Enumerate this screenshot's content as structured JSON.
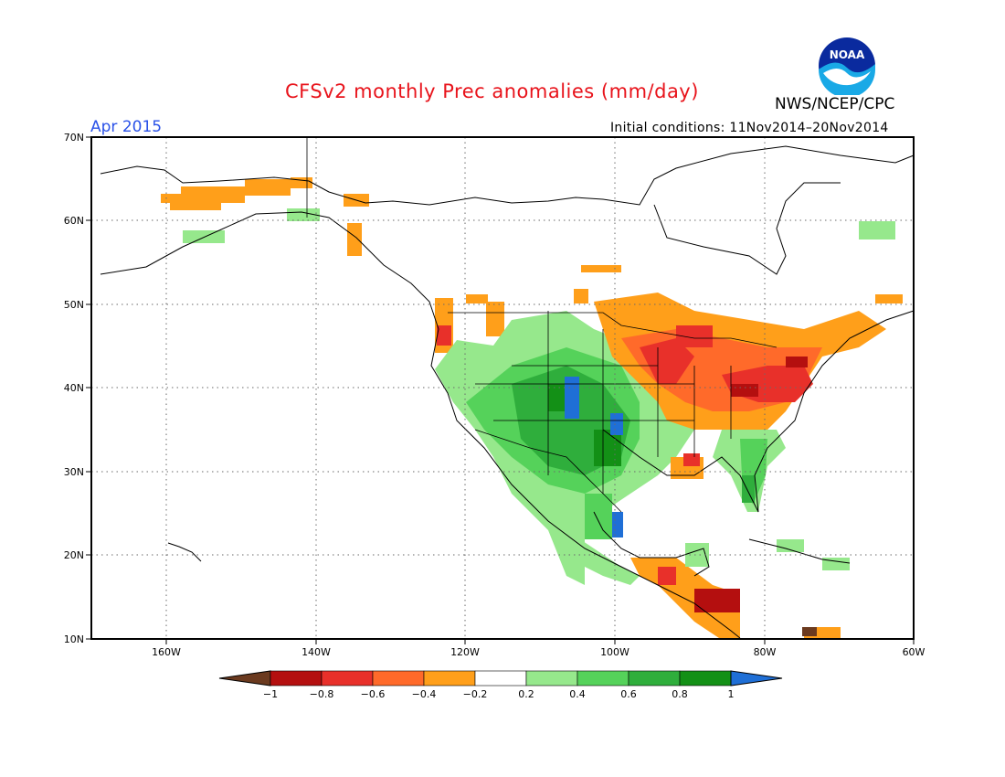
{
  "title": "CFSv2 monthly Prec anomalies (mm/day)",
  "agency": "NWS/NCEP/CPC",
  "logo_text": "NOAA",
  "month": "Apr 2015",
  "initial_conditions": "Initial conditions: 11Nov2014–20Nov2014",
  "lat_labels": [
    "70N",
    "60N",
    "50N",
    "40N",
    "30N",
    "20N",
    "10N"
  ],
  "lon_labels": [
    "160W",
    "140W",
    "120W",
    "100W",
    "80W",
    "60W"
  ],
  "colorbar": {
    "labels": [
      "−1",
      "−0.8",
      "−0.6",
      "−0.4",
      "−0.2",
      "0.2",
      "0.4",
      "0.6",
      "0.8",
      "1"
    ],
    "colors": [
      "#6b3a1f",
      "#b40f0f",
      "#e8302a",
      "#ff6a2a",
      "#ff9f1a",
      "#ffffff",
      "#96e88c",
      "#55d25a",
      "#2fae3c",
      "#139016",
      "#1f6fd6"
    ]
  }
}
